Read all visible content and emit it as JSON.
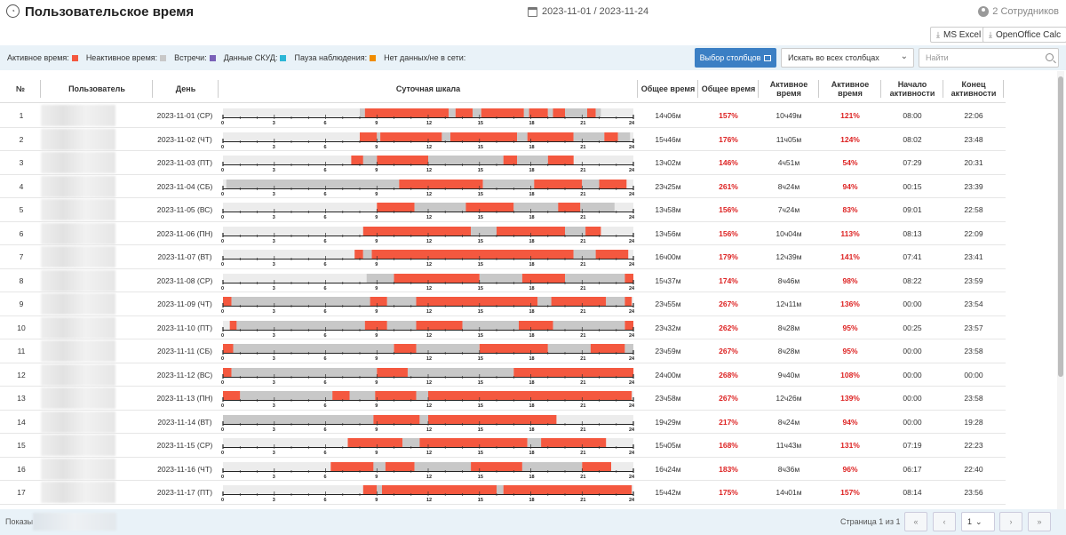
{
  "header": {
    "title": "Пользовательское время",
    "date_range": "2023-11-01 / 2023-11-24",
    "employees": "2 Сотрудников"
  },
  "exports": {
    "excel": "MS Excel",
    "calc": "OpenOffice Calc"
  },
  "legend": [
    {
      "label": "Активное время:",
      "color": "#f4583f"
    },
    {
      "label": "Неактивное время:",
      "color": "#c8c8c8"
    },
    {
      "label": "Встречи:",
      "color": "#7a61b8"
    },
    {
      "label": "Данные СКУД:",
      "color": "#2cb6d6"
    },
    {
      "label": "Пауза наблюдения:",
      "color": "#f08c00"
    },
    {
      "label": "Нет данных/не в сети:",
      "color": ""
    }
  ],
  "toolbar": {
    "columns_button": "Выбор столбцов",
    "search_scope": "Искать во всех столбцах",
    "search_placeholder": "Найти"
  },
  "columns": {
    "num": "№",
    "user": "Пользователь",
    "day": "День",
    "scale": "Суточная шкала",
    "total": "Общее время",
    "total_pct": "Общее время",
    "active": "Активное время",
    "active_pct": "Активное время",
    "start": "Начало активности",
    "end": "Конец активности"
  },
  "scale_ticks": [
    "0",
    "3",
    "6",
    "9",
    "12",
    "15",
    "18",
    "21",
    "24"
  ],
  "rows": [
    {
      "n": "1",
      "day": "2023-11-01 (СР)",
      "total": "14ч06м",
      "total_pct": "157%",
      "active": "10ч49м",
      "active_pct": "121%",
      "start": "08:00",
      "end": "22:06",
      "timeline": [
        [
          8.0,
          8.3,
          "i"
        ],
        [
          8.3,
          13.2,
          "a"
        ],
        [
          13.2,
          13.6,
          "i"
        ],
        [
          13.6,
          14.6,
          "a"
        ],
        [
          14.6,
          15.1,
          "i"
        ],
        [
          15.1,
          17.6,
          "a"
        ],
        [
          17.6,
          17.9,
          "i"
        ],
        [
          17.9,
          19.0,
          "a"
        ],
        [
          19.0,
          19.3,
          "i"
        ],
        [
          19.3,
          20.0,
          "a"
        ],
        [
          20.0,
          21.3,
          "i"
        ],
        [
          21.3,
          21.8,
          "a"
        ],
        [
          21.8,
          22.1,
          "i"
        ]
      ]
    },
    {
      "n": "2",
      "day": "2023-11-02 (ЧТ)",
      "total": "15ч46м",
      "total_pct": "176%",
      "active": "11ч05м",
      "active_pct": "124%",
      "start": "08:02",
      "end": "23:48",
      "timeline": [
        [
          8.0,
          9.0,
          "a"
        ],
        [
          9.0,
          9.2,
          "i"
        ],
        [
          9.2,
          12.8,
          "a"
        ],
        [
          12.8,
          13.3,
          "i"
        ],
        [
          13.3,
          17.2,
          "a"
        ],
        [
          17.2,
          17.8,
          "i"
        ],
        [
          17.8,
          20.5,
          "a"
        ],
        [
          20.5,
          22.3,
          "i"
        ],
        [
          22.3,
          23.1,
          "a"
        ],
        [
          23.1,
          23.8,
          "i"
        ]
      ]
    },
    {
      "n": "3",
      "day": "2023-11-03 (ПТ)",
      "total": "13ч02м",
      "total_pct": "146%",
      "active": "4ч51м",
      "active_pct": "54%",
      "start": "07:29",
      "end": "20:31",
      "timeline": [
        [
          7.5,
          8.2,
          "a"
        ],
        [
          8.2,
          9.0,
          "i"
        ],
        [
          9.0,
          12.0,
          "a"
        ],
        [
          12.0,
          16.4,
          "i"
        ],
        [
          16.4,
          17.2,
          "a"
        ],
        [
          17.2,
          19.0,
          "i"
        ],
        [
          19.0,
          20.5,
          "a"
        ]
      ]
    },
    {
      "n": "4",
      "day": "2023-11-04 (СБ)",
      "total": "23ч25м",
      "total_pct": "261%",
      "active": "8ч24м",
      "active_pct": "94%",
      "start": "00:15",
      "end": "23:39",
      "timeline": [
        [
          0.2,
          10.3,
          "i"
        ],
        [
          10.3,
          15.2,
          "a"
        ],
        [
          15.2,
          18.2,
          "i"
        ],
        [
          18.2,
          21.0,
          "a"
        ],
        [
          21.0,
          22.0,
          "i"
        ],
        [
          22.0,
          23.6,
          "a"
        ]
      ]
    },
    {
      "n": "5",
      "day": "2023-11-05 (ВС)",
      "total": "13ч58м",
      "total_pct": "156%",
      "active": "7ч24м",
      "active_pct": "83%",
      "start": "09:01",
      "end": "22:58",
      "timeline": [
        [
          9.0,
          11.2,
          "a"
        ],
        [
          11.2,
          14.2,
          "i"
        ],
        [
          14.2,
          17.0,
          "a"
        ],
        [
          17.0,
          19.6,
          "i"
        ],
        [
          19.6,
          20.9,
          "a"
        ],
        [
          20.9,
          22.9,
          "i"
        ]
      ]
    },
    {
      "n": "6",
      "day": "2023-11-06 (ПН)",
      "total": "13ч56м",
      "total_pct": "156%",
      "active": "10ч04м",
      "active_pct": "113%",
      "start": "08:13",
      "end": "22:09",
      "timeline": [
        [
          8.2,
          14.5,
          "a"
        ],
        [
          14.5,
          16.0,
          "i"
        ],
        [
          16.0,
          20.0,
          "a"
        ],
        [
          20.0,
          21.2,
          "i"
        ],
        [
          21.2,
          22.1,
          "a"
        ]
      ]
    },
    {
      "n": "7",
      "day": "2023-11-07 (ВТ)",
      "total": "16ч00м",
      "total_pct": "179%",
      "active": "12ч39м",
      "active_pct": "141%",
      "start": "07:41",
      "end": "23:41",
      "timeline": [
        [
          7.7,
          8.2,
          "a"
        ],
        [
          8.2,
          8.7,
          "i"
        ],
        [
          8.7,
          20.5,
          "a"
        ],
        [
          20.5,
          21.8,
          "i"
        ],
        [
          21.8,
          23.7,
          "a"
        ]
      ]
    },
    {
      "n": "8",
      "day": "2023-11-08 (СР)",
      "total": "15ч37м",
      "total_pct": "174%",
      "active": "8ч46м",
      "active_pct": "98%",
      "start": "08:22",
      "end": "23:59",
      "timeline": [
        [
          8.4,
          10.0,
          "i"
        ],
        [
          10.0,
          15.0,
          "a"
        ],
        [
          15.0,
          17.5,
          "i"
        ],
        [
          17.5,
          20.0,
          "a"
        ],
        [
          20.0,
          23.5,
          "i"
        ],
        [
          23.5,
          24.0,
          "a"
        ]
      ]
    },
    {
      "n": "9",
      "day": "2023-11-09 (ЧТ)",
      "total": "23ч55м",
      "total_pct": "267%",
      "active": "12ч11м",
      "active_pct": "136%",
      "start": "00:00",
      "end": "23:54",
      "timeline": [
        [
          0.0,
          0.5,
          "a"
        ],
        [
          0.5,
          8.6,
          "i"
        ],
        [
          8.6,
          9.6,
          "a"
        ],
        [
          9.6,
          11.3,
          "i"
        ],
        [
          11.3,
          18.4,
          "a"
        ],
        [
          18.4,
          19.2,
          "i"
        ],
        [
          19.2,
          22.4,
          "a"
        ],
        [
          22.4,
          23.5,
          "i"
        ],
        [
          23.5,
          23.9,
          "a"
        ]
      ]
    },
    {
      "n": "10",
      "day": "2023-11-10 (ПТ)",
      "total": "23ч32м",
      "total_pct": "262%",
      "active": "8ч28м",
      "active_pct": "95%",
      "start": "00:25",
      "end": "23:57",
      "timeline": [
        [
          0.4,
          0.8,
          "a"
        ],
        [
          0.8,
          8.3,
          "i"
        ],
        [
          8.3,
          9.6,
          "a"
        ],
        [
          9.6,
          11.3,
          "i"
        ],
        [
          11.3,
          14.0,
          "a"
        ],
        [
          14.0,
          17.3,
          "i"
        ],
        [
          17.3,
          19.3,
          "a"
        ],
        [
          19.3,
          23.5,
          "i"
        ],
        [
          23.5,
          24.0,
          "a"
        ]
      ]
    },
    {
      "n": "11",
      "day": "2023-11-11 (СБ)",
      "total": "23ч59м",
      "total_pct": "267%",
      "active": "8ч28м",
      "active_pct": "95%",
      "start": "00:00",
      "end": "23:58",
      "timeline": [
        [
          0.0,
          0.6,
          "a"
        ],
        [
          0.6,
          10.0,
          "i"
        ],
        [
          10.0,
          11.3,
          "a"
        ],
        [
          11.3,
          15.0,
          "i"
        ],
        [
          15.0,
          19.0,
          "a"
        ],
        [
          19.0,
          21.5,
          "i"
        ],
        [
          21.5,
          23.5,
          "a"
        ],
        [
          23.5,
          24.0,
          "i"
        ]
      ]
    },
    {
      "n": "12",
      "day": "2023-11-12 (ВС)",
      "total": "24ч00м",
      "total_pct": "268%",
      "active": "9ч40м",
      "active_pct": "108%",
      "start": "00:00",
      "end": "00:00",
      "timeline": [
        [
          0.0,
          0.5,
          "a"
        ],
        [
          0.5,
          9.0,
          "i"
        ],
        [
          9.0,
          10.8,
          "a"
        ],
        [
          10.8,
          17.0,
          "i"
        ],
        [
          17.0,
          24.0,
          "a"
        ]
      ]
    },
    {
      "n": "13",
      "day": "2023-11-13 (ПН)",
      "total": "23ч58м",
      "total_pct": "267%",
      "active": "12ч26м",
      "active_pct": "139%",
      "start": "00:00",
      "end": "23:58",
      "timeline": [
        [
          0.0,
          1.0,
          "a"
        ],
        [
          1.0,
          6.4,
          "i"
        ],
        [
          6.4,
          7.4,
          "a"
        ],
        [
          7.4,
          8.9,
          "i"
        ],
        [
          8.9,
          11.3,
          "a"
        ],
        [
          11.3,
          12.0,
          "i"
        ],
        [
          12.0,
          23.9,
          "a"
        ]
      ]
    },
    {
      "n": "14",
      "day": "2023-11-14 (ВТ)",
      "total": "19ч29м",
      "total_pct": "217%",
      "active": "8ч24м",
      "active_pct": "94%",
      "start": "00:00",
      "end": "19:28",
      "timeline": [
        [
          0.0,
          8.8,
          "i"
        ],
        [
          8.8,
          11.5,
          "a"
        ],
        [
          11.5,
          12.0,
          "i"
        ],
        [
          12.0,
          19.5,
          "a"
        ]
      ]
    },
    {
      "n": "15",
      "day": "2023-11-15 (СР)",
      "total": "15ч05м",
      "total_pct": "168%",
      "active": "11ч43м",
      "active_pct": "131%",
      "start": "07:19",
      "end": "22:23",
      "timeline": [
        [
          7.3,
          10.5,
          "a"
        ],
        [
          10.5,
          11.5,
          "i"
        ],
        [
          11.5,
          17.8,
          "a"
        ],
        [
          17.8,
          18.6,
          "i"
        ],
        [
          18.6,
          22.4,
          "a"
        ]
      ]
    },
    {
      "n": "16",
      "day": "2023-11-16 (ЧТ)",
      "total": "16ч24м",
      "total_pct": "183%",
      "active": "8ч36м",
      "active_pct": "96%",
      "start": "06:17",
      "end": "22:40",
      "timeline": [
        [
          6.3,
          8.8,
          "a"
        ],
        [
          8.8,
          9.5,
          "i"
        ],
        [
          9.5,
          11.2,
          "a"
        ],
        [
          11.2,
          14.5,
          "i"
        ],
        [
          14.5,
          17.5,
          "a"
        ],
        [
          17.5,
          21.0,
          "i"
        ],
        [
          21.0,
          22.7,
          "a"
        ]
      ]
    },
    {
      "n": "17",
      "day": "2023-11-17 (ПТ)",
      "total": "15ч42м",
      "total_pct": "175%",
      "active": "14ч01м",
      "active_pct": "157%",
      "start": "08:14",
      "end": "23:56",
      "timeline": [
        [
          8.2,
          9.0,
          "a"
        ],
        [
          9.0,
          9.3,
          "i"
        ],
        [
          9.3,
          16.0,
          "a"
        ],
        [
          16.0,
          16.4,
          "i"
        ],
        [
          16.4,
          23.9,
          "a"
        ]
      ]
    }
  ],
  "footer": {
    "showing": "Показы",
    "page_info": "Страница 1 из 1",
    "page_select": "1"
  }
}
